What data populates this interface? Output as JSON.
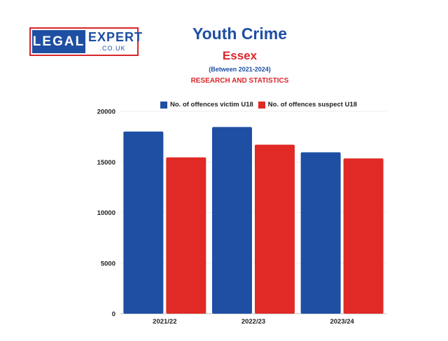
{
  "logo": {
    "legal": "LEGAL",
    "expert": "EXPERT",
    "couk": ".CO.UK"
  },
  "header": {
    "title": "Youth Crime",
    "subtitle": "Essex",
    "period": "(Between 2021-2024)",
    "research": "RESEARCH AND STATISTICS"
  },
  "colors": {
    "victim": "#1e4fa3",
    "suspect": "#e12a26",
    "title_blue": "#1e4fa3",
    "accent_red": "#d9262b"
  },
  "chart_data": {
    "type": "bar",
    "categories": [
      "2021/22",
      "2022/23",
      "2023/24"
    ],
    "series": [
      {
        "name": "No. of offences victim U18",
        "values": [
          18000,
          18450,
          15950
        ]
      },
      {
        "name": "No. of offences suspect U18",
        "values": [
          15450,
          16700,
          15350
        ]
      }
    ],
    "ylim": [
      0,
      20000
    ],
    "yticks": [
      "0",
      "5000",
      "10000",
      "15000",
      "20000"
    ],
    "grid": true,
    "legend": "top"
  }
}
